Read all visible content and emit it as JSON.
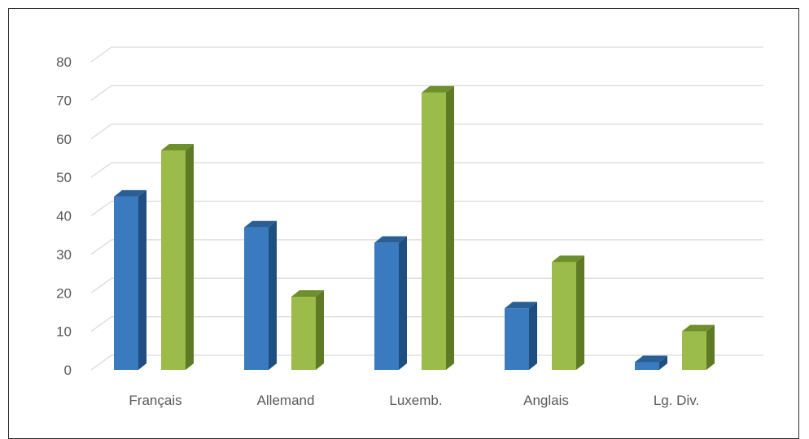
{
  "chart_data": {
    "type": "bar",
    "title": "",
    "xlabel": "",
    "ylabel": "",
    "categories": [
      "Français",
      "Allemand",
      "Luxemb.",
      "Anglais",
      "Lg. Div."
    ],
    "series": [
      {
        "values": [
          45,
          37,
          33,
          16,
          2
        ],
        "color": "#3a7bbf",
        "side_color": "#1e4f80",
        "top_color": "#2a5f96"
      },
      {
        "values": [
          57,
          19,
          72,
          28,
          10
        ],
        "color": "#9bbb4a",
        "side_color": "#5e7a24",
        "top_color": "#6f8f2c"
      }
    ],
    "ylim": [
      0,
      80
    ],
    "yticks": [
      "0",
      "10",
      "20",
      "30",
      "40",
      "50",
      "60",
      "70",
      "80"
    ],
    "grid": true,
    "legend": "none"
  }
}
